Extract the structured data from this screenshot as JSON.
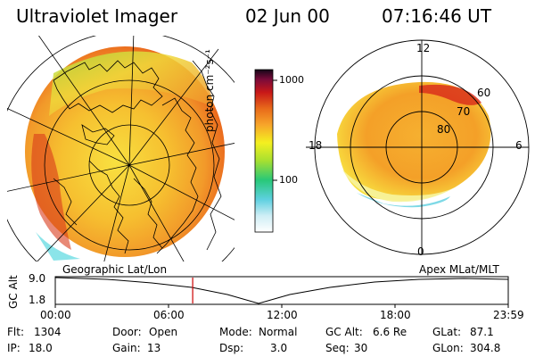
{
  "header": {
    "instrument": "Ultraviolet Imager",
    "date": "02 Jun 00",
    "time": "07:16:46 UT"
  },
  "panels": {
    "left_label": "Geographic Lat/Lon",
    "right_label": "Apex MLat/MLT",
    "mlt_labels": {
      "top": "12",
      "left": "18",
      "right": "6",
      "bottom": "0"
    },
    "lat_labels": [
      "60",
      "70",
      "80"
    ]
  },
  "colorbar": {
    "unit_label": "photon cm⁻²s⁻¹",
    "ticks": [
      "1000",
      "100"
    ],
    "scale": "log",
    "colors": [
      "#ffffff",
      "#7ad6e8",
      "#28c878",
      "#9be02a",
      "#f4f020",
      "#f7a52a",
      "#e86a1a",
      "#c81818",
      "#7a0a3a",
      "#1a0a2a"
    ]
  },
  "altitude_plot": {
    "ylabel": "GC Alt",
    "ytick_top": "9.0",
    "ytick_bottom": "1.8",
    "xticks": [
      "00:00",
      "06:00",
      "12:00",
      "18:00",
      "23:59"
    ],
    "current_marker_time_hours": 7.28
  },
  "info": {
    "flt": {
      "label": "Flt:",
      "value": "1304"
    },
    "ip": {
      "label": "IP:",
      "value": "18.0"
    },
    "door": {
      "label": "Door:",
      "value": "Open"
    },
    "gain": {
      "label": "Gain:",
      "value": "13"
    },
    "mode": {
      "label": "Mode:",
      "value": "Normal"
    },
    "dsp": {
      "label": "Dsp:",
      "value": "3.0"
    },
    "gcalt": {
      "label": "GC Alt:",
      "value": "6.6 Re"
    },
    "seq": {
      "label": "Seq:",
      "value": "30"
    },
    "glat": {
      "label": "GLat:",
      "value": "87.1"
    },
    "glon": {
      "label": "GLon:",
      "value": "304.8"
    }
  },
  "accent_colors": {
    "marker": "#cc0000"
  }
}
